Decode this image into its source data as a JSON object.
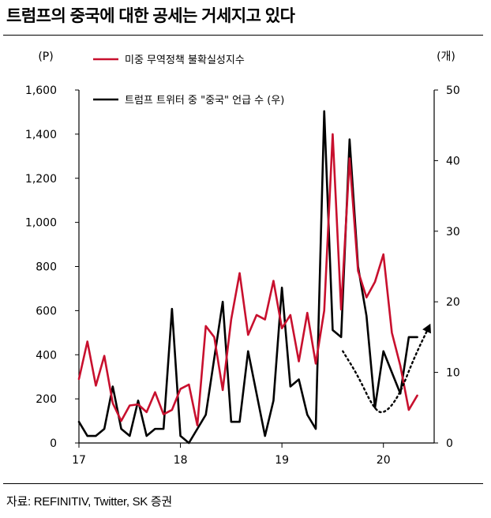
{
  "page": {
    "title": "트럼프의 중국에 대한 공세는 거세지고 있다",
    "source": "자료: REFINITIV, Twitter, SK 증권"
  },
  "colors": {
    "red": "#c8102e",
    "black": "#000000"
  },
  "chart_data": {
    "type": "line",
    "left_axis": {
      "unit": "(P)",
      "ylim": [
        0,
        1600
      ],
      "ticks": [
        "0",
        "200",
        "400",
        "600",
        "800",
        "1,000",
        "1,200",
        "1,400",
        "1,600"
      ],
      "tick_values": [
        0,
        200,
        400,
        600,
        800,
        1000,
        1200,
        1400,
        1600
      ]
    },
    "right_axis": {
      "unit": "(개)",
      "ylim": [
        0,
        50
      ],
      "ticks": [
        "0",
        "10",
        "20",
        "30",
        "40",
        "50"
      ],
      "tick_values": [
        0,
        10,
        20,
        30,
        40,
        50
      ]
    },
    "x_axis": {
      "xlim": [
        2017.0,
        2020.5
      ],
      "ticks": [
        "17",
        "18",
        "19",
        "20"
      ],
      "tick_values": [
        2017,
        2018,
        2019,
        2020
      ]
    },
    "grid": false,
    "legend_position": "top-center",
    "series": [
      {
        "name": "미중 무역정책 불확실성지수",
        "axis": "left",
        "color": "#c8102e",
        "x": [
          2017.0,
          2017.0833,
          2017.1667,
          2017.25,
          2017.3333,
          2017.4167,
          2017.5,
          2017.5833,
          2017.6667,
          2017.75,
          2017.8333,
          2017.9167,
          2018.0,
          2018.0833,
          2018.1667,
          2018.25,
          2018.3333,
          2018.4167,
          2018.5,
          2018.5833,
          2018.6667,
          2018.75,
          2018.8333,
          2018.9167,
          2019.0,
          2019.0833,
          2019.1667,
          2019.25,
          2019.3333,
          2019.4167,
          2019.5,
          2019.5833,
          2019.6667,
          2019.75,
          2019.8333,
          2019.9167,
          2020.0,
          2020.0833,
          2020.1667,
          2020.25,
          2020.3333
        ],
        "values": [
          290,
          460,
          260,
          395,
          180,
          100,
          170,
          175,
          140,
          230,
          130,
          150,
          245,
          265,
          80,
          530,
          480,
          240,
          560,
          770,
          490,
          580,
          560,
          735,
          520,
          580,
          370,
          590,
          360,
          600,
          1400,
          605,
          1290,
          780,
          660,
          730,
          855,
          500,
          350,
          150,
          215
        ]
      },
      {
        "name": "트럼프 트위터 중 \"중국\" 언급 수 (우)",
        "axis": "right",
        "color": "#000000",
        "x": [
          2017.0,
          2017.0833,
          2017.1667,
          2017.25,
          2017.3333,
          2017.4167,
          2017.5,
          2017.5833,
          2017.6667,
          2017.75,
          2017.8333,
          2017.9167,
          2018.0,
          2018.0833,
          2018.1667,
          2018.25,
          2018.3333,
          2018.4167,
          2018.5,
          2018.5833,
          2018.6667,
          2018.75,
          2018.8333,
          2018.9167,
          2019.0,
          2019.0833,
          2019.1667,
          2019.25,
          2019.3333,
          2019.4167,
          2019.5,
          2019.5833,
          2019.6667,
          2019.75,
          2019.8333,
          2019.9167,
          2020.0,
          2020.0833,
          2020.1667,
          2020.25,
          2020.3333
        ],
        "values": [
          3,
          1,
          1,
          2,
          8,
          2,
          1,
          6,
          1,
          2,
          2,
          19,
          1,
          0,
          2,
          4,
          12,
          20,
          3,
          3,
          13,
          7,
          1,
          6,
          22,
          8,
          9,
          4,
          2,
          47,
          16,
          15,
          43,
          25,
          18,
          5,
          13,
          10,
          7,
          15,
          15
        ]
      }
    ],
    "annotations": [
      {
        "type": "dotted-arrow",
        "description": "추세 전환",
        "points": [
          [
            2019.6,
            13
          ],
          [
            2019.75,
            9.5
          ],
          [
            2019.9,
            5
          ],
          [
            2020.0,
            4
          ],
          [
            2020.15,
            6.5
          ],
          [
            2020.3,
            12
          ],
          [
            2020.45,
            16.5
          ]
        ]
      }
    ]
  }
}
